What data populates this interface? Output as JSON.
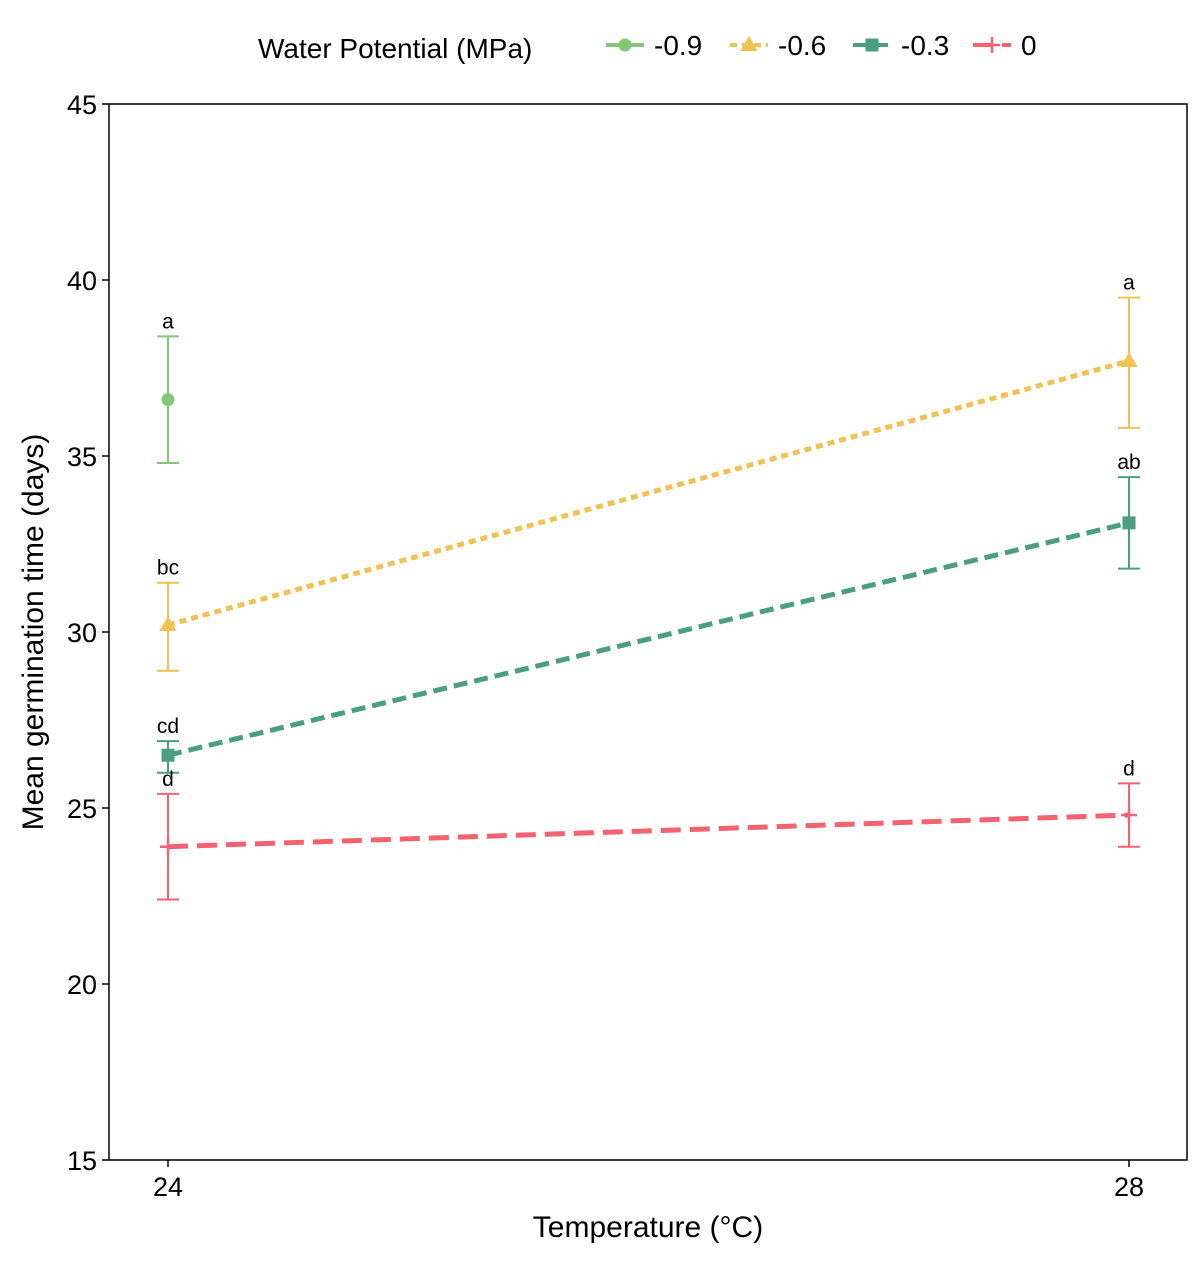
{
  "chart_data": {
    "type": "line",
    "title": "",
    "xlabel": "Temperature (°C)",
    "ylabel": "Mean germination time (days)",
    "categories": [
      "24",
      "28"
    ],
    "ylim": [
      15,
      45
    ],
    "yticks": [
      "15",
      "20",
      "25",
      "30",
      "35",
      "40",
      "45"
    ],
    "legend": {
      "title": "Water Potential (MPa)",
      "position": "top"
    },
    "series": [
      {
        "name": "-0.9",
        "color": "#7ec876",
        "marker": "circle",
        "line": "none",
        "values": [
          36.6,
          null
        ],
        "err_low": [
          34.8,
          null
        ],
        "err_high": [
          38.4,
          null
        ],
        "letters": [
          "a",
          null
        ]
      },
      {
        "name": "-0.6",
        "color": "#f0c254",
        "marker": "triangle",
        "line": "dotted",
        "values": [
          30.2,
          37.7
        ],
        "err_low": [
          28.9,
          35.8
        ],
        "err_high": [
          31.4,
          39.5
        ],
        "letters": [
          "bc",
          "a"
        ]
      },
      {
        "name": "-0.3",
        "color": "#4a9e82",
        "marker": "square",
        "line": "dashed",
        "values": [
          26.5,
          33.1
        ],
        "err_low": [
          26.0,
          31.8
        ],
        "err_high": [
          26.9,
          34.4
        ],
        "letters": [
          "cd",
          "ab"
        ]
      },
      {
        "name": "0",
        "color": "#f2626f",
        "marker": "cross",
        "line": "longdash",
        "values": [
          23.9,
          24.8
        ],
        "err_low": [
          22.4,
          23.9
        ],
        "err_high": [
          25.4,
          25.7
        ],
        "letters": [
          "d",
          "d"
        ]
      }
    ]
  }
}
